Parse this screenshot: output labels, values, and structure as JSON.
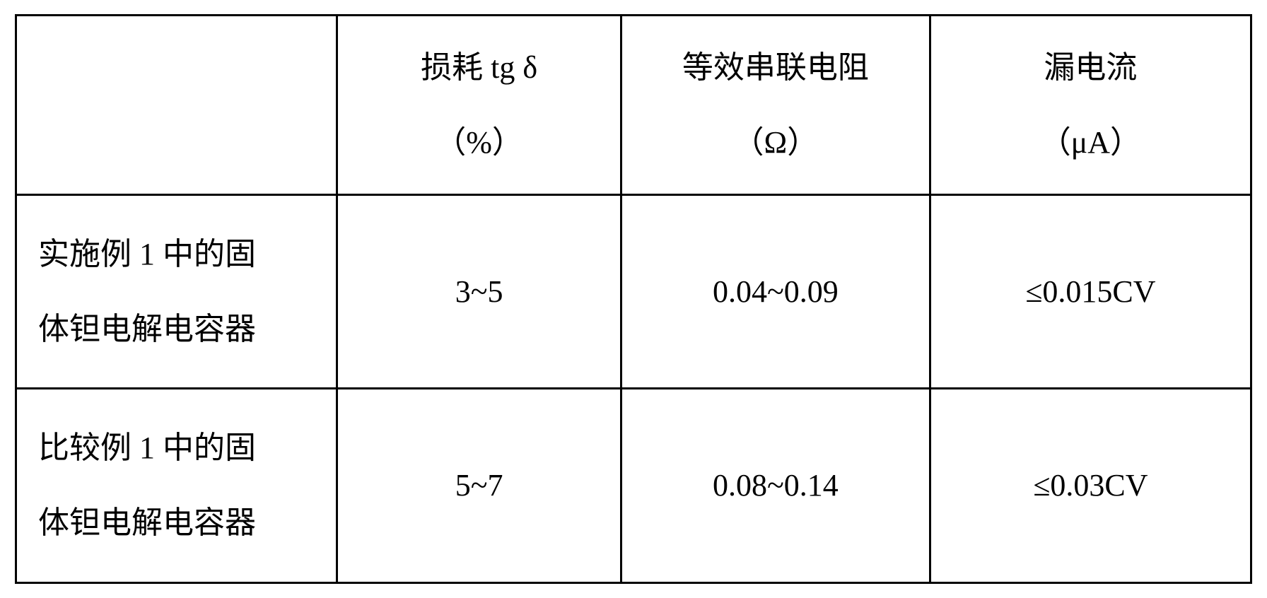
{
  "table": {
    "border_color": "#000000",
    "background_color": "#ffffff",
    "text_color": "#000000",
    "font_size": 44,
    "columns": [
      {
        "key": "label",
        "header_line1": "",
        "header_line2": "",
        "width_pct": 26,
        "align": "left"
      },
      {
        "key": "loss",
        "header_line1": "损耗 tg δ",
        "header_line2": "（%）",
        "width_pct": 23,
        "align": "center"
      },
      {
        "key": "esr",
        "header_line1": "等效串联电阻",
        "header_line2": "（Ω）",
        "width_pct": 25,
        "align": "center"
      },
      {
        "key": "leak",
        "header_line1": "漏电流",
        "header_line2": "（μA）",
        "width_pct": 26,
        "align": "center"
      }
    ],
    "rows": [
      {
        "label_line1": "实施例 1 中的固",
        "label_line2": "体钽电解电容器",
        "loss": "3~5",
        "esr": "0.04~0.09",
        "leak": "≤0.015CV"
      },
      {
        "label_line1": "比较例 1 中的固",
        "label_line2": "体钽电解电容器",
        "loss": "5~7",
        "esr": "0.08~0.14",
        "leak": "≤0.03CV"
      }
    ]
  }
}
